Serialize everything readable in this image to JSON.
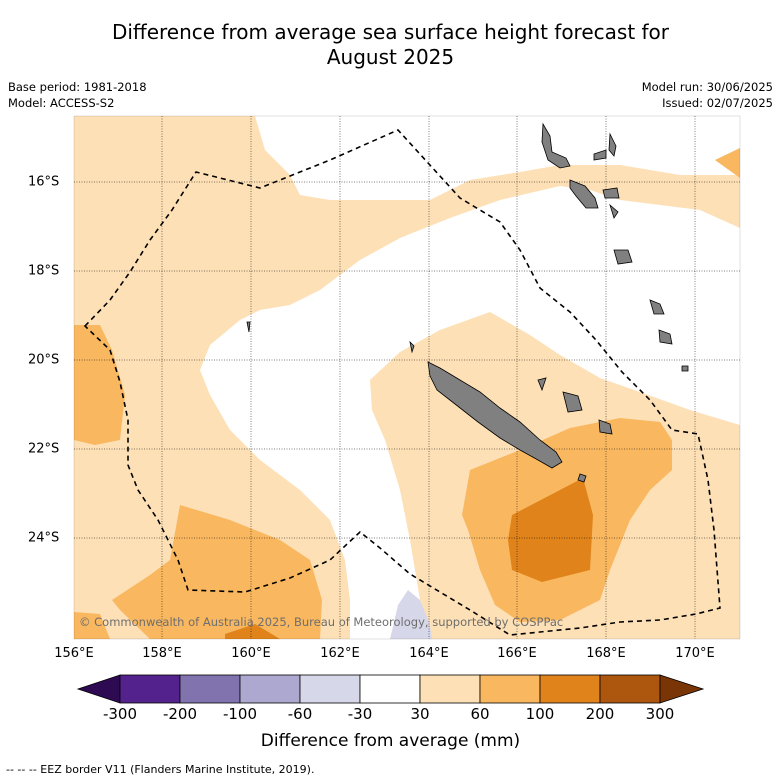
{
  "title_line1": "Difference from average sea surface height forecast for",
  "title_line2": "August 2025",
  "meta_left": [
    "Base period: 1981-2018",
    "Model: ACCESS-S2"
  ],
  "meta_right": [
    "Model run: 30/06/2025",
    "Issued: 02/07/2025"
  ],
  "map": {
    "lon_labels": [
      "156°E",
      "158°E",
      "160°E",
      "162°E",
      "164°E",
      "166°E",
      "168°E",
      "170°E"
    ],
    "lat_labels": [
      "16°S",
      "18°S",
      "20°S",
      "22°S",
      "24°S"
    ],
    "copyright": "© Commonwealth of Australia 2025, Bureau of Meteorology, supported by COSPPac",
    "land_color": "#808080",
    "eez_line": "dashed black"
  },
  "colorbar": {
    "title": "Difference from average (mm)",
    "tick_labels": [
      "-300",
      "-200",
      "-100",
      "-60",
      "-30",
      "30",
      "60",
      "100",
      "200",
      "300"
    ],
    "colors": [
      "#2d0a52",
      "#54228c",
      "#8173ad",
      "#aca8d0",
      "#d7d7ea",
      "#ffffff",
      "#fde0b6",
      "#f9b75f",
      "#e0831b",
      "#ad560e",
      "#7a3506"
    ]
  },
  "footnote": "-- -- -- EEZ border V11 (Flanders Marine Institute, 2019)."
}
